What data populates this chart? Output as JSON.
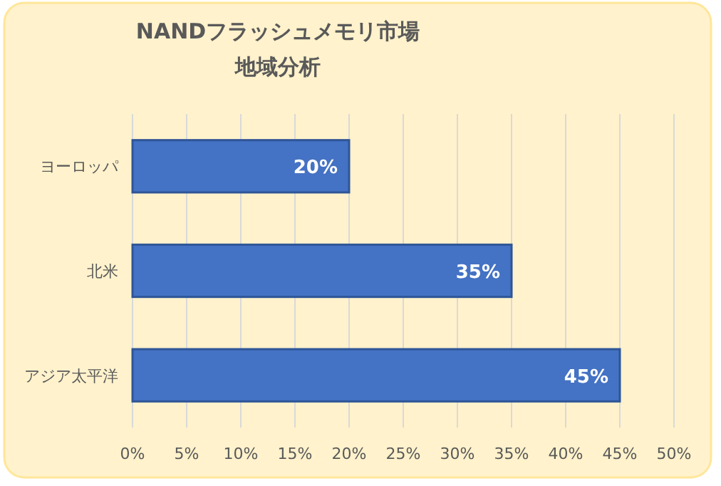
{
  "chart_data": {
    "type": "bar",
    "orientation": "horizontal",
    "title": "NANDフラッシュメモリ市場",
    "subtitle": "地域分析",
    "categories": [
      "ヨーロッパ",
      "北米",
      "アジア太平洋"
    ],
    "values": [
      20,
      35,
      45
    ],
    "value_labels": [
      "20%",
      "35%",
      "45%"
    ],
    "color": "#4472c4",
    "xlim": [
      0,
      50
    ],
    "xticks": [
      {
        "value": 0,
        "label": "0%"
      },
      {
        "value": 5,
        "label": "5%"
      },
      {
        "value": 10,
        "label": "10%"
      },
      {
        "value": 15,
        "label": "15%"
      },
      {
        "value": 20,
        "label": "20%"
      },
      {
        "value": 25,
        "label": "25%"
      },
      {
        "value": 30,
        "label": "30%"
      },
      {
        "value": 35,
        "label": "35%"
      },
      {
        "value": 40,
        "label": "40%"
      },
      {
        "value": 45,
        "label": "45%"
      },
      {
        "value": 50,
        "label": "50%"
      }
    ],
    "grid": "x"
  }
}
